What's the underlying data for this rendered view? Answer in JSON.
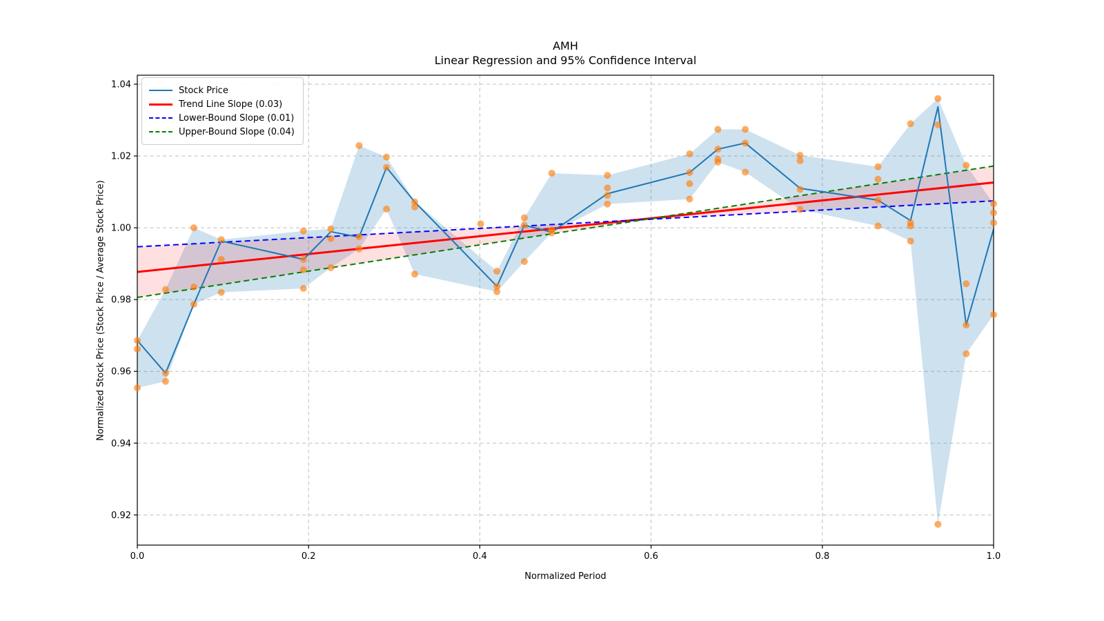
{
  "chart_data": {
    "type": "line",
    "title": "AMH",
    "subtitle": "Linear Regression and 95% Confidence Interval",
    "xlabel": "Normalized Period",
    "ylabel": "Normalized Stock Price (Stock Price / Average Stock Price)",
    "xlim": [
      0,
      1
    ],
    "ylim": [
      0.9116,
      1.0425
    ],
    "xticks": [
      0.0,
      0.2,
      0.4,
      0.6,
      0.8,
      1.0
    ],
    "xtick_labels": [
      "0.0",
      "0.2",
      "0.4",
      "0.6",
      "0.8",
      "1.0"
    ],
    "yticks": [
      0.92,
      0.94,
      0.96,
      0.98,
      1.0,
      1.02,
      1.04
    ],
    "ytick_labels": [
      "0.92",
      "0.94",
      "0.96",
      "0.98",
      "1.00",
      "1.02",
      "1.04"
    ],
    "grid": true,
    "legend_position": "upper-left",
    "colors": {
      "stock_line": "#1f77b4",
      "scatter": "#ff7f0e",
      "band_fill": "#1f77b4",
      "trend_line": "#ff0000",
      "ci_fill": "#ff0000",
      "lower_bound": "#0000ff",
      "upper_bound": "#008000",
      "grid": "#bdbdbd",
      "spine": "#000000"
    },
    "legend": [
      {
        "label": "Stock Price",
        "color": "#1f77b4",
        "dashed": false,
        "width": 2
      },
      {
        "label": "Trend Line Slope (0.03)",
        "color": "#ff0000",
        "dashed": false,
        "width": 3
      },
      {
        "label": "Lower-Bound Slope (0.01)",
        "color": "#0000ff",
        "dashed": true,
        "width": 2
      },
      {
        "label": "Upper-Bound Slope (0.04)",
        "color": "#008000",
        "dashed": true,
        "width": 2
      }
    ],
    "stock_line": {
      "x": [
        0,
        0.033,
        0.066,
        0.098,
        0.194,
        0.226,
        0.259,
        0.291,
        0.324,
        0.42,
        0.452,
        0.484,
        0.549,
        0.645,
        0.678,
        0.71,
        0.774,
        0.865,
        0.903,
        0.935,
        0.968,
        1
      ],
      "y": [
        0.9686,
        0.9595,
        0.9787,
        0.9963,
        0.9912,
        0.9989,
        0.9974,
        1.0168,
        1.0072,
        0.9837,
        1.0007,
        0.9988,
        1.0095,
        1.0154,
        1.0219,
        1.0236,
        1.011,
        1.0077,
        1.002,
        1.0337,
        0.9729,
        0.9996
      ]
    },
    "band": {
      "x": [
        0,
        0.033,
        0.066,
        0.098,
        0.194,
        0.226,
        0.259,
        0.291,
        0.324,
        0.42,
        0.452,
        0.484,
        0.549,
        0.645,
        0.678,
        0.71,
        0.774,
        0.865,
        0.903,
        0.935,
        0.968,
        1
      ],
      "low": [
        0.9554,
        0.9572,
        0.9787,
        0.982,
        0.9831,
        0.9889,
        0.9941,
        1.0052,
        0.9871,
        0.9822,
        0.9906,
        0.9986,
        1.0066,
        1.008,
        1.0183,
        1.0155,
        1.0051,
        1.0005,
        0.9963,
        0.9174,
        0.9649,
        0.9758
      ],
      "high": [
        0.9686,
        0.9828,
        1.0,
        0.9967,
        0.9991,
        0.9997,
        1.0229,
        1.0197,
        1.0073,
        0.9879,
        1.0028,
        1.0152,
        1.0146,
        1.0206,
        1.0274,
        1.0274,
        1.0202,
        1.017,
        1.029,
        1.036,
        1.0174,
        1.0067
      ]
    },
    "scatter": {
      "x": [
        0,
        0,
        0,
        0.033,
        0.033,
        0.033,
        0.066,
        0.066,
        0.066,
        0.098,
        0.098,
        0.098,
        0.194,
        0.194,
        0.194,
        0.194,
        0.226,
        0.226,
        0.226,
        0.259,
        0.259,
        0.259,
        0.291,
        0.291,
        0.291,
        0.324,
        0.324,
        0.324,
        0.401,
        0.42,
        0.42,
        0.42,
        0.452,
        0.452,
        0.452,
        0.484,
        0.484,
        0.484,
        0.549,
        0.549,
        0.549,
        0.549,
        0.645,
        0.645,
        0.645,
        0.645,
        0.678,
        0.678,
        0.678,
        0.678,
        0.71,
        0.71,
        0.71,
        0.774,
        0.774,
        0.774,
        0.774,
        0.865,
        0.865,
        0.865,
        0.865,
        0.903,
        0.903,
        0.903,
        0.903,
        0.935,
        0.935,
        0.935,
        0.968,
        0.968,
        0.968,
        0.968,
        1,
        1,
        1,
        1
      ],
      "y": [
        0.9686,
        0.9662,
        0.9554,
        0.9828,
        0.9595,
        0.9572,
        1.0,
        0.9835,
        0.9787,
        0.9967,
        0.9912,
        0.982,
        0.9991,
        0.9912,
        0.9883,
        0.9831,
        0.9997,
        0.997,
        0.9889,
        1.0229,
        0.9975,
        0.9941,
        1.0197,
        1.0168,
        1.0052,
        1.0072,
        1.0058,
        0.9871,
        1.0011,
        0.9879,
        0.9837,
        0.9822,
        1.0028,
        1.0007,
        0.9906,
        1.0152,
        0.9994,
        0.9986,
        1.0146,
        1.0111,
        1.009,
        1.0066,
        1.0206,
        1.0154,
        1.0123,
        1.008,
        1.0274,
        1.0219,
        1.0191,
        1.0183,
        1.0274,
        1.0236,
        1.0155,
        1.0202,
        1.0187,
        1.0107,
        1.0051,
        1.017,
        1.0135,
        1.0077,
        1.0005,
        1.029,
        1.0014,
        1.0005,
        0.9963,
        1.036,
        1.0287,
        0.9174,
        1.0174,
        0.9844,
        0.9729,
        0.9649,
        1.0067,
        1.0042,
        1.0014,
        0.9758
      ]
    },
    "trend_line": {
      "slope_label": "0.03",
      "y_start": 0.9877,
      "y_end": 1.0126
    },
    "lower_bound": {
      "slope_label": "0.01",
      "y_start": 0.9947,
      "y_end": 1.0075
    },
    "upper_bound": {
      "slope_label": "0.04",
      "y_start": 0.9806,
      "y_end": 1.0172
    }
  }
}
